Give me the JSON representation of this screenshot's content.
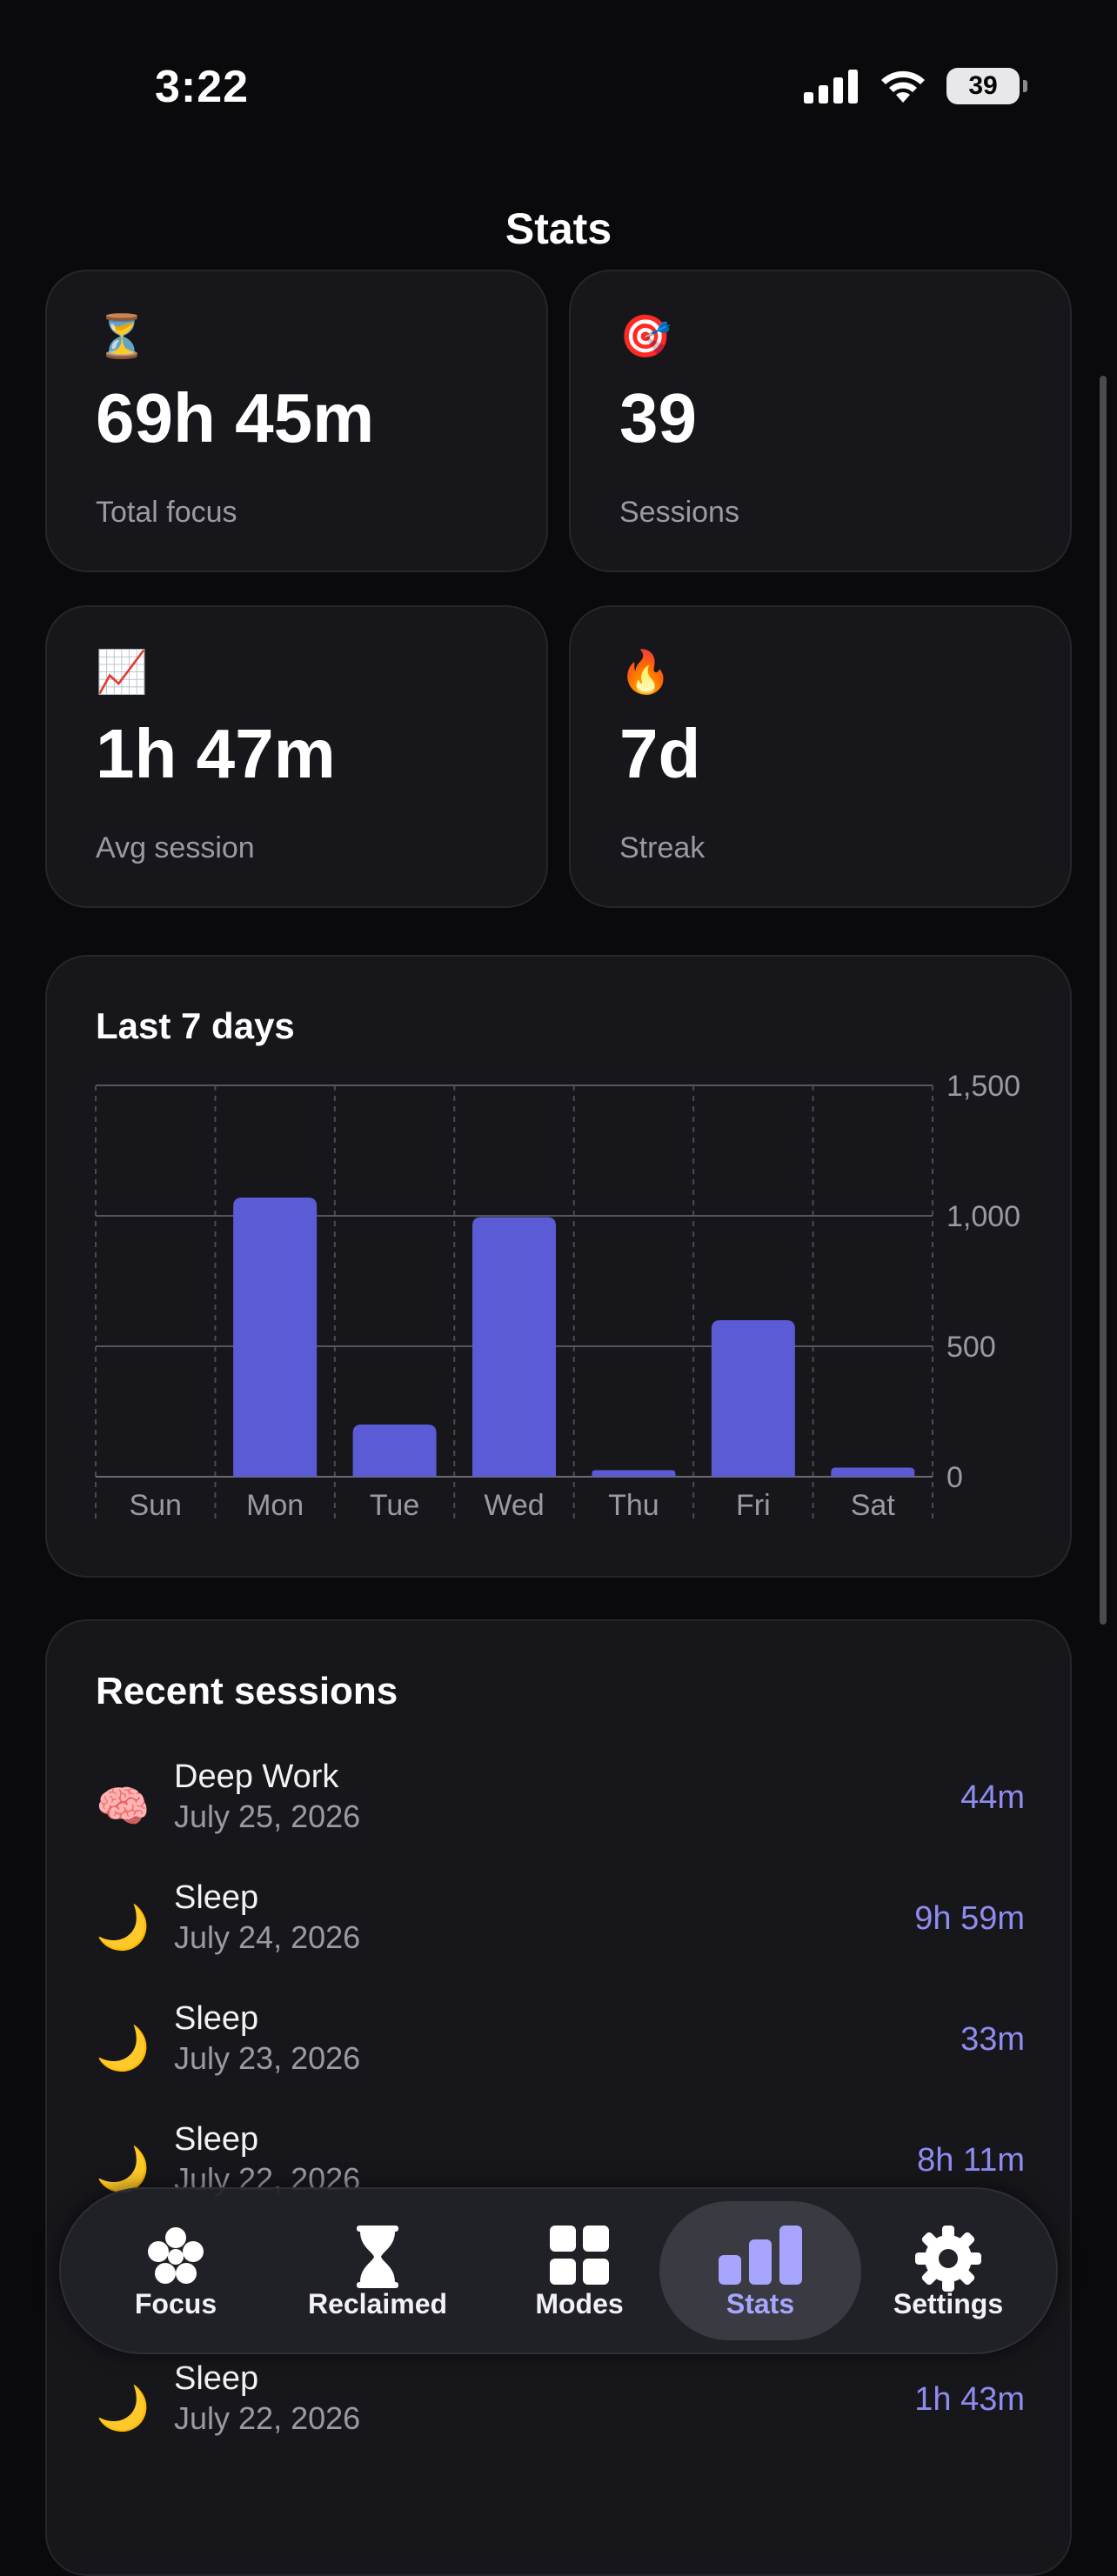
{
  "status": {
    "time": "3:22",
    "battery": "39"
  },
  "page": {
    "title": "Stats"
  },
  "stats": [
    {
      "icon": "⏳",
      "icon_name": "hourglass-icon",
      "value": "69h 45m",
      "label": "Total focus"
    },
    {
      "icon": "🎯",
      "icon_name": "target-icon",
      "value": "39",
      "label": "Sessions"
    },
    {
      "icon": "📈",
      "icon_name": "chart-up-icon",
      "value": "1h 47m",
      "label": "Avg session"
    },
    {
      "icon": "🔥",
      "icon_name": "fire-icon",
      "value": "7d",
      "label": "Streak"
    }
  ],
  "chart_data": {
    "type": "bar",
    "title": "Last 7 days",
    "categories": [
      "Sun",
      "Mon",
      "Tue",
      "Wed",
      "Thu",
      "Fri",
      "Sat"
    ],
    "values": [
      0,
      1070,
      200,
      995,
      25,
      600,
      35
    ],
    "ylim": [
      0,
      1500
    ],
    "yticks": [
      "0",
      "500",
      "1,000",
      "1,500"
    ],
    "ytick_values": [
      0,
      500,
      1000,
      1500
    ],
    "grid": true,
    "y_axis_side": "right",
    "bar_color": "#5b5bd6"
  },
  "recent": {
    "title": "Recent sessions",
    "sessions": [
      {
        "icon": "🧠",
        "icon_name": "brain-icon",
        "name": "Deep Work",
        "date": "July 25, 2026",
        "duration": "44m"
      },
      {
        "icon": "🌙",
        "icon_name": "moon-icon",
        "name": "Sleep",
        "date": "July 24, 2026",
        "duration": "9h 59m"
      },
      {
        "icon": "🌙",
        "icon_name": "moon-icon",
        "name": "Sleep",
        "date": "July 23, 2026",
        "duration": "33m"
      },
      {
        "icon": "🌙",
        "icon_name": "moon-icon",
        "name": "Sleep",
        "date": "July 22, 2026",
        "duration": "8h 11m"
      },
      {
        "icon": "🌙",
        "icon_name": "moon-icon",
        "name": "Sleep",
        "date": "July 22, 2026",
        "duration": "1h 43m"
      }
    ]
  },
  "tabs": [
    {
      "label": "Focus",
      "icon_name": "flower-icon",
      "active": false
    },
    {
      "label": "Reclaimed",
      "icon_name": "hourglass-icon",
      "active": false
    },
    {
      "label": "Modes",
      "icon_name": "grid-icon",
      "active": false
    },
    {
      "label": "Stats",
      "icon_name": "bar-chart-icon",
      "active": true
    },
    {
      "label": "Settings",
      "icon_name": "gear-icon",
      "active": false
    }
  ],
  "colors": {
    "accent": "#5b5bd6",
    "accent_text": "#8f8cf0",
    "card_bg": "#17171b",
    "background": "#0a0a0c"
  }
}
